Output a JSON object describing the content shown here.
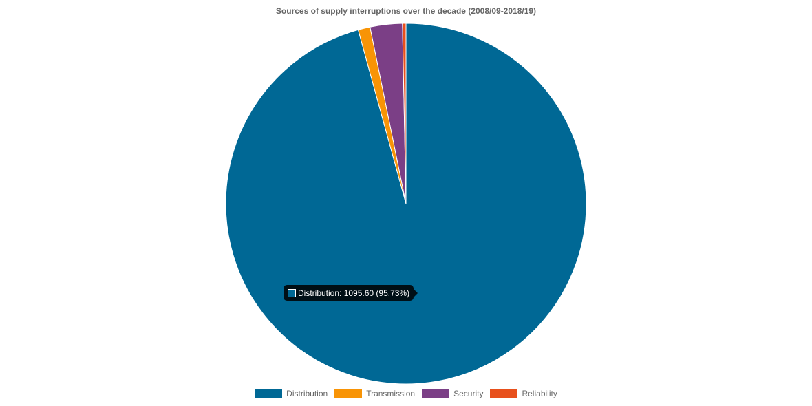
{
  "chart_data": {
    "type": "pie",
    "title": "Sources of supply interruptions over the decade (2008/09-2018/19)",
    "categories": [
      "Distribution",
      "Transmission",
      "Security",
      "Reliability"
    ],
    "values": [
      1095.6,
      12.3,
      33.0,
      3.6
    ],
    "colors": [
      "#006895",
      "#f89406",
      "#7b3f86",
      "#e8501c"
    ],
    "legend_position": "bottom"
  },
  "tooltip": {
    "label": "Distribution: 1095.60 (95.73%)",
    "color": "#006895"
  }
}
